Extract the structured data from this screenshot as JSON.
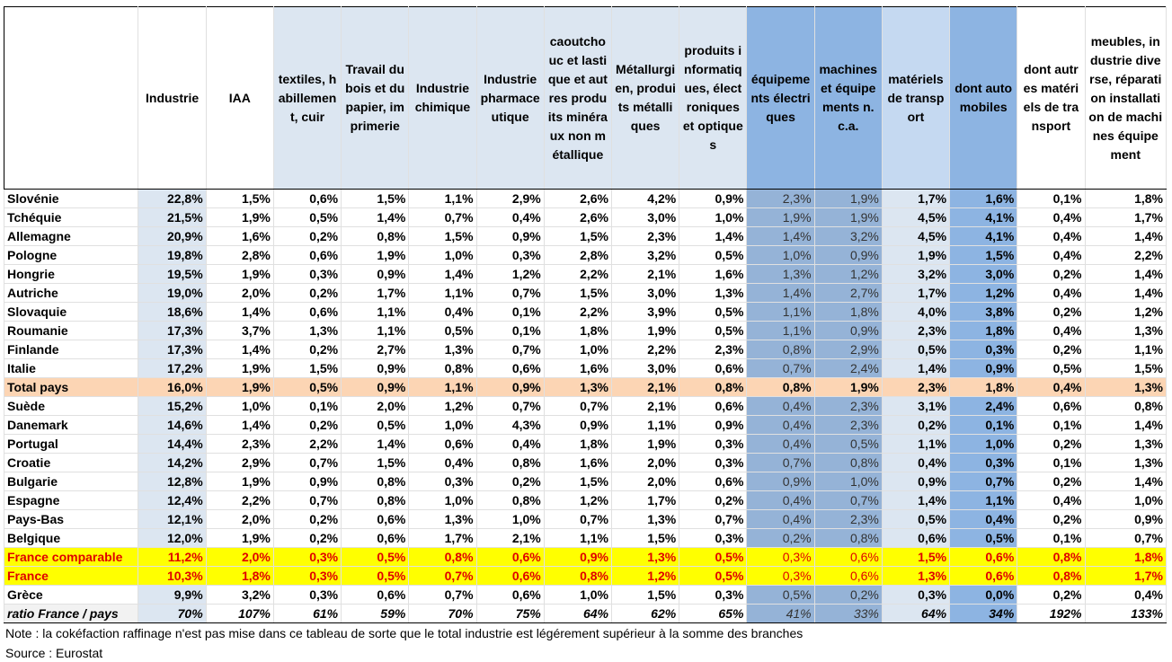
{
  "table": {
    "header": [
      "",
      "Industrie",
      "IAA",
      "textiles, habillement, cuir",
      "Travail du bois et du papier, imprimerie",
      "Industrie chimique",
      "Industrie pharmaceutique",
      "caoutchouc et lastique et autres produits minéraux non métallique",
      "Métallurgien, produits métalliques",
      "produits informatiques, électroniques et optiques",
      "équipements électriques",
      "machines et équipements n.c.a.",
      "matériels de transport",
      "dont automobiles",
      "dont autres matériels de transport",
      "meubles, industrie diverse, réparation installation de machines équipement"
    ],
    "rows": [
      [
        "Slovénie",
        "22,8%",
        "1,5%",
        "0,6%",
        "1,5%",
        "1,1%",
        "2,9%",
        "2,6%",
        "4,2%",
        "0,9%",
        "2,3%",
        "1,9%",
        "1,7%",
        "1,6%",
        "0,1%",
        "1,8%"
      ],
      [
        "Tchéquie",
        "21,5%",
        "1,9%",
        "0,5%",
        "1,4%",
        "0,7%",
        "0,4%",
        "2,6%",
        "3,0%",
        "1,0%",
        "1,9%",
        "1,9%",
        "4,5%",
        "4,1%",
        "0,4%",
        "1,7%"
      ],
      [
        "Allemagne",
        "20,9%",
        "1,6%",
        "0,2%",
        "0,8%",
        "1,5%",
        "0,9%",
        "1,5%",
        "2,3%",
        "1,4%",
        "1,4%",
        "3,2%",
        "4,5%",
        "4,1%",
        "0,4%",
        "1,4%"
      ],
      [
        "Pologne",
        "19,8%",
        "2,8%",
        "0,6%",
        "1,9%",
        "1,0%",
        "0,3%",
        "2,8%",
        "3,2%",
        "0,5%",
        "1,0%",
        "0,9%",
        "1,9%",
        "1,5%",
        "0,4%",
        "2,2%"
      ],
      [
        "Hongrie",
        "19,5%",
        "1,9%",
        "0,3%",
        "0,9%",
        "1,4%",
        "1,2%",
        "2,2%",
        "2,1%",
        "1,6%",
        "1,3%",
        "1,2%",
        "3,2%",
        "3,0%",
        "0,2%",
        "1,4%"
      ],
      [
        "Autriche",
        "19,0%",
        "2,0%",
        "0,2%",
        "1,7%",
        "1,1%",
        "0,7%",
        "1,5%",
        "3,0%",
        "1,3%",
        "1,4%",
        "2,7%",
        "1,7%",
        "1,2%",
        "0,4%",
        "1,4%"
      ],
      [
        "Slovaquie",
        "18,6%",
        "1,4%",
        "0,6%",
        "1,1%",
        "0,4%",
        "0,1%",
        "2,2%",
        "3,9%",
        "0,5%",
        "1,1%",
        "1,8%",
        "4,0%",
        "3,8%",
        "0,2%",
        "1,2%"
      ],
      [
        "Roumanie",
        "17,3%",
        "3,7%",
        "1,3%",
        "1,1%",
        "0,5%",
        "0,1%",
        "1,8%",
        "1,9%",
        "0,5%",
        "1,1%",
        "0,9%",
        "2,3%",
        "1,8%",
        "0,4%",
        "1,3%"
      ],
      [
        "Finlande",
        "17,3%",
        "1,4%",
        "0,2%",
        "2,7%",
        "1,3%",
        "0,7%",
        "1,0%",
        "2,2%",
        "2,3%",
        "0,8%",
        "2,9%",
        "0,5%",
        "0,3%",
        "0,2%",
        "1,1%"
      ],
      [
        "Italie",
        "17,2%",
        "1,9%",
        "1,5%",
        "0,9%",
        "0,8%",
        "0,6%",
        "1,6%",
        "3,0%",
        "0,6%",
        "0,7%",
        "2,4%",
        "1,4%",
        "0,9%",
        "0,5%",
        "1,5%"
      ],
      [
        "Total pays",
        "16,0%",
        "1,9%",
        "0,5%",
        "0,9%",
        "1,1%",
        "0,9%",
        "1,3%",
        "2,1%",
        "0,8%",
        "0,8%",
        "1,9%",
        "2,3%",
        "1,8%",
        "0,4%",
        "1,3%"
      ],
      [
        "Suède",
        "15,2%",
        "1,0%",
        "0,1%",
        "2,0%",
        "1,2%",
        "0,7%",
        "0,7%",
        "2,1%",
        "0,6%",
        "0,4%",
        "2,3%",
        "3,1%",
        "2,4%",
        "0,6%",
        "0,8%"
      ],
      [
        "Danemark",
        "14,6%",
        "1,4%",
        "0,2%",
        "0,5%",
        "1,0%",
        "4,3%",
        "0,9%",
        "1,1%",
        "0,9%",
        "0,4%",
        "2,3%",
        "0,2%",
        "0,1%",
        "0,1%",
        "1,4%"
      ],
      [
        "Portugal",
        "14,4%",
        "2,3%",
        "2,2%",
        "1,4%",
        "0,6%",
        "0,4%",
        "1,8%",
        "1,9%",
        "0,3%",
        "0,4%",
        "0,5%",
        "1,1%",
        "1,0%",
        "0,2%",
        "1,3%"
      ],
      [
        "Croatie",
        "14,2%",
        "2,9%",
        "0,7%",
        "1,5%",
        "0,4%",
        "0,8%",
        "1,6%",
        "2,0%",
        "0,3%",
        "0,7%",
        "0,8%",
        "0,4%",
        "0,3%",
        "0,1%",
        "1,3%"
      ],
      [
        "Bulgarie",
        "12,8%",
        "1,9%",
        "0,9%",
        "0,8%",
        "0,3%",
        "0,2%",
        "1,5%",
        "2,0%",
        "0,6%",
        "0,9%",
        "1,0%",
        "0,9%",
        "0,7%",
        "0,2%",
        "1,4%"
      ],
      [
        "Espagne",
        "12,4%",
        "2,2%",
        "0,7%",
        "0,8%",
        "1,0%",
        "0,8%",
        "1,2%",
        "1,7%",
        "0,2%",
        "0,4%",
        "0,7%",
        "1,4%",
        "1,1%",
        "0,4%",
        "1,0%"
      ],
      [
        "Pays-Bas",
        "12,1%",
        "2,0%",
        "0,2%",
        "0,6%",
        "1,3%",
        "1,0%",
        "0,7%",
        "1,3%",
        "0,7%",
        "0,4%",
        "2,3%",
        "0,5%",
        "0,4%",
        "0,2%",
        "0,9%"
      ],
      [
        "Belgique",
        "12,0%",
        "1,9%",
        "0,2%",
        "0,6%",
        "1,7%",
        "2,1%",
        "1,1%",
        "1,5%",
        "0,3%",
        "0,2%",
        "0,8%",
        "0,6%",
        "0,5%",
        "0,1%",
        "0,7%"
      ],
      [
        "France comparable",
        "11,2%",
        "2,0%",
        "0,3%",
        "0,5%",
        "0,8%",
        "0,6%",
        "0,9%",
        "1,3%",
        "0,5%",
        "0,3%",
        "0,6%",
        "1,5%",
        "0,6%",
        "0,8%",
        "1,8%"
      ],
      [
        "France",
        "10,3%",
        "1,8%",
        "0,3%",
        "0,5%",
        "0,7%",
        "0,6%",
        "0,8%",
        "1,2%",
        "0,5%",
        "0,3%",
        "0,6%",
        "1,3%",
        "0,6%",
        "0,8%",
        "1,7%"
      ],
      [
        "Grèce",
        "9,9%",
        "3,2%",
        "0,3%",
        "0,6%",
        "0,7%",
        "0,6%",
        "1,0%",
        "1,5%",
        "0,3%",
        "0,5%",
        "0,2%",
        "0,3%",
        "0,0%",
        "0,2%",
        "0,4%"
      ],
      [
        "ratio France / pays",
        "70%",
        "107%",
        "61%",
        "59%",
        "70%",
        "75%",
        "64%",
        "62%",
        "65%",
        "41%",
        "33%",
        "64%",
        "34%",
        "192%",
        "133%"
      ]
    ]
  },
  "notes": [
    "Note : la cokéfaction raffinage n'est pas mise dans ce tableau de sorte que le total industrie est légérement supérieur à la somme des branches",
    "Source : Eurostat"
  ]
}
